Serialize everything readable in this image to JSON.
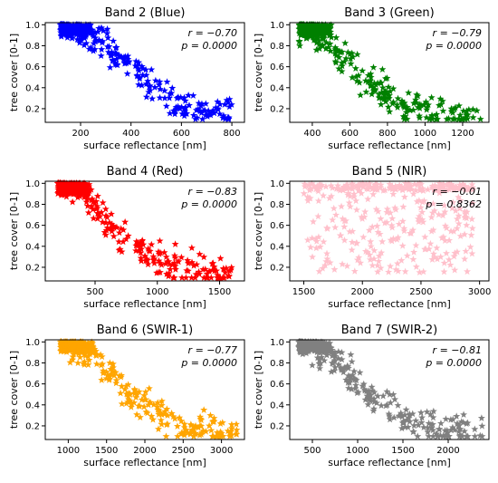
{
  "chart_data": [
    {
      "type": "scatter",
      "title": "Band 2 (Blue)",
      "xlabel": "surface reflectance [nm]",
      "ylabel": "tree cover [0-1]",
      "color": "#0000ff",
      "xlim": [
        60,
        850
      ],
      "ylim": [
        0.07,
        1.02
      ],
      "xticks": [
        200,
        400,
        600,
        800
      ],
      "yticks": [
        0.2,
        0.4,
        0.6,
        0.8,
        1.0
      ],
      "r_text": "r = −0.70",
      "p_text": "p = 0.0000",
      "r": -0.7,
      "trend": [
        [
          120,
          1.0
        ],
        [
          250,
          0.9
        ],
        [
          400,
          0.6
        ],
        [
          600,
          0.2
        ],
        [
          800,
          0.15
        ]
      ]
    },
    {
      "type": "scatter",
      "title": "Band 3 (Green)",
      "xlabel": "surface reflectance [nm]",
      "ylabel": "tree cover [0-1]",
      "color": "#008000",
      "xlim": [
        280,
        1340
      ],
      "ylim": [
        0.07,
        1.02
      ],
      "xticks": [
        400,
        600,
        800,
        1000,
        1200
      ],
      "yticks": [
        0.2,
        0.4,
        0.6,
        0.8,
        1.0
      ],
      "r_text": "r = −0.79",
      "p_text": "p = 0.0000",
      "r": -0.79,
      "trend": [
        [
          330,
          1.0
        ],
        [
          450,
          0.9
        ],
        [
          600,
          0.6
        ],
        [
          900,
          0.2
        ],
        [
          1300,
          0.15
        ]
      ]
    },
    {
      "type": "scatter",
      "title": "Band 4 (Red)",
      "xlabel": "surface reflectance [nm]",
      "ylabel": "tree cover [0-1]",
      "color": "#ff0000",
      "xlim": [
        100,
        1700
      ],
      "ylim": [
        0.07,
        1.02
      ],
      "xticks": [
        500,
        1000,
        1500
      ],
      "yticks": [
        0.2,
        0.4,
        0.6,
        0.8,
        1.0
      ],
      "r_text": "r = −0.83",
      "p_text": "p = 0.0000",
      "r": -0.83,
      "trend": [
        [
          200,
          1.0
        ],
        [
          400,
          0.9
        ],
        [
          700,
          0.5
        ],
        [
          1100,
          0.2
        ],
        [
          1600,
          0.15
        ]
      ]
    },
    {
      "type": "scatter",
      "title": "Band 5 (NIR)",
      "xlabel": "surface reflectance [nm]",
      "ylabel": "tree cover [0-1]",
      "color": "#ffc0cb",
      "xlim": [
        1380,
        3080
      ],
      "ylim": [
        0.07,
        1.02
      ],
      "xticks": [
        1500,
        2000,
        2500,
        3000
      ],
      "yticks": [
        0.2,
        0.4,
        0.6,
        0.8,
        1.0
      ],
      "r_text": "r = −0.01",
      "p_text": "p = 0.8362",
      "r": -0.01,
      "trend": [
        [
          1450,
          0.55
        ],
        [
          3050,
          0.55
        ]
      ]
    },
    {
      "type": "scatter",
      "title": "Band 6 (SWIR-1)",
      "xlabel": "surface reflectance [nm]",
      "ylabel": "tree cover [0-1]",
      "color": "#ffa500",
      "xlim": [
        700,
        3300
      ],
      "ylim": [
        0.07,
        1.02
      ],
      "xticks": [
        1000,
        1500,
        2000,
        2500,
        3000
      ],
      "yticks": [
        0.2,
        0.4,
        0.6,
        0.8,
        1.0
      ],
      "r_text": "r = −0.77",
      "p_text": "p = 0.0000",
      "r": -0.77,
      "trend": [
        [
          900,
          1.0
        ],
        [
          1300,
          0.9
        ],
        [
          1800,
          0.5
        ],
        [
          2400,
          0.2
        ],
        [
          3200,
          0.12
        ]
      ]
    },
    {
      "type": "scatter",
      "title": "Band 7 (SWIR-2)",
      "xlabel": "surface reflectance [nm]",
      "ylabel": "tree cover [0-1]",
      "color": "#808080",
      "xlim": [
        250,
        2450
      ],
      "ylim": [
        0.07,
        1.02
      ],
      "xticks": [
        500,
        1000,
        1500,
        2000
      ],
      "yticks": [
        0.2,
        0.4,
        0.6,
        0.8,
        1.0
      ],
      "r_text": "r = −0.81",
      "p_text": "p = 0.0000",
      "r": -0.81,
      "trend": [
        [
          350,
          1.0
        ],
        [
          650,
          0.9
        ],
        [
          1100,
          0.5
        ],
        [
          1700,
          0.2
        ],
        [
          2400,
          0.12
        ]
      ]
    }
  ]
}
